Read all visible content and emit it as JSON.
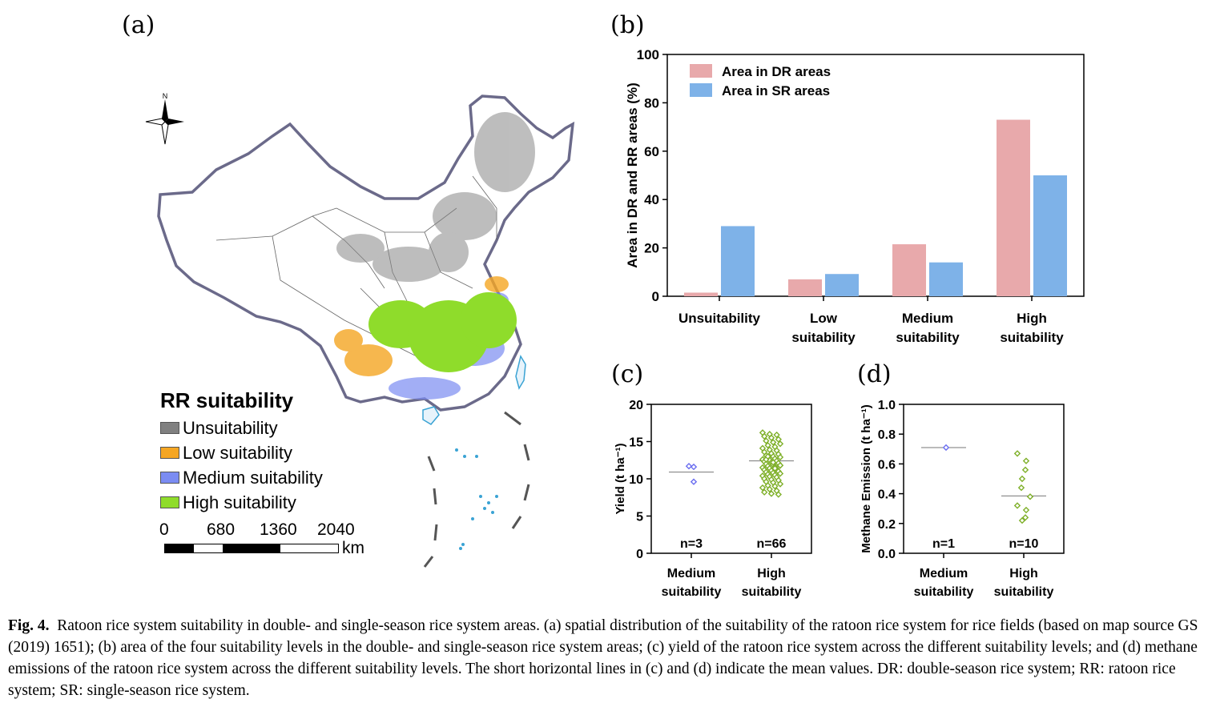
{
  "panel_a": {
    "label": "(a)",
    "north_label": "N",
    "legend": {
      "title": "RR suitability",
      "items": [
        {
          "label": "Unsuitability",
          "color": "#808080"
        },
        {
          "label": "Low suitability",
          "color": "#f5a623"
        },
        {
          "label": "Medium suitability",
          "color": "#7b8cf2"
        },
        {
          "label": "High suitability",
          "color": "#8fdc2b"
        }
      ]
    },
    "scale_bar": {
      "ticks": [
        "0",
        "680",
        "1360",
        "2040"
      ],
      "unit": "km"
    }
  },
  "chart_data": [
    {
      "id": "b",
      "panel_label": "(b)",
      "type": "bar",
      "categories": [
        "Unsuitability",
        "Low suitability",
        "Medium suitability",
        "High suitability"
      ],
      "category_lines": [
        [
          "Unsuitability"
        ],
        [
          "Low",
          "suitability"
        ],
        [
          "Medium",
          "suitability"
        ],
        [
          "High",
          "suitability"
        ]
      ],
      "series": [
        {
          "name": "Area in DR areas",
          "color": "#e8a9ab",
          "values": [
            1.5,
            7,
            21.5,
            73
          ]
        },
        {
          "name": "Area in SR areas",
          "color": "#7eb2e8",
          "values": [
            29,
            9.2,
            14,
            50
          ]
        }
      ],
      "ylabel": "Area in DR and RR areas (%)",
      "xlabel": "",
      "ylim": [
        0,
        100
      ],
      "yticks": [
        "0",
        "20",
        "40",
        "60",
        "80",
        "100"
      ],
      "legend_position": "top-left",
      "grid": false
    },
    {
      "id": "c",
      "panel_label": "(c)",
      "type": "scatter",
      "categories": [
        "Medium suitability",
        "High suitability"
      ],
      "category_lines": [
        [
          "Medium",
          "suitability"
        ],
        [
          "High",
          "suitability"
        ]
      ],
      "ylabel": "Yield (t ha⁻¹)",
      "ylim": [
        0,
        20
      ],
      "yticks": [
        "0",
        "5",
        "10",
        "15",
        "20"
      ],
      "counts": [
        "n=3",
        "n=66"
      ],
      "colors": [
        "#6b6ef0",
        "#7fb02a"
      ],
      "means": [
        10.9,
        12.4
      ],
      "points": [
        [
          11.6,
          11.7,
          9.6
        ],
        [
          16.2,
          16.0,
          15.9,
          15.7,
          15.5,
          15.3,
          15.1,
          14.9,
          14.7,
          14.5,
          14.3,
          14.1,
          13.9,
          13.8,
          13.6,
          13.4,
          13.3,
          13.1,
          13.0,
          12.9,
          12.8,
          12.7,
          12.6,
          12.5,
          12.4,
          12.3,
          12.2,
          12.1,
          12.0,
          11.9,
          11.8,
          11.7,
          11.6,
          11.5,
          11.4,
          11.3,
          11.2,
          11.1,
          11.0,
          10.9,
          10.8,
          10.7,
          10.6,
          10.5,
          10.4,
          10.3,
          10.2,
          10.0,
          9.9,
          9.8,
          9.6,
          9.5,
          9.3,
          9.1,
          9.0,
          8.8,
          8.6,
          8.4,
          8.2,
          8.0,
          7.9,
          12.6,
          12.2,
          11.8,
          13.0,
          11.4
        ]
      ]
    },
    {
      "id": "d",
      "panel_label": "(d)",
      "type": "scatter",
      "categories": [
        "Medium suitability",
        "High suitability"
      ],
      "category_lines": [
        [
          "Medium",
          "suitability"
        ],
        [
          "High",
          "suitability"
        ]
      ],
      "ylabel": "Methane Emission (t ha⁻¹)",
      "ylim": [
        0,
        1.0
      ],
      "yticks": [
        "0.0",
        "0.2",
        "0.4",
        "0.6",
        "0.8",
        "1.0"
      ],
      "counts": [
        "n=1",
        "n=10"
      ],
      "colors": [
        "#6b6ef0",
        "#7fb02a"
      ],
      "means": [
        0.71,
        0.385
      ],
      "points": [
        [
          0.71
        ],
        [
          0.67,
          0.62,
          0.56,
          0.5,
          0.44,
          0.38,
          0.32,
          0.29,
          0.24,
          0.22
        ]
      ]
    }
  ],
  "caption": {
    "bold": "Fig. 4.",
    "text": "Ratoon rice system suitability in double- and single-season rice system areas. (a) spatial distribution of the suitability of the ratoon rice system for rice fields (based on map source GS (2019) 1651); (b) area of the four suitability levels in the double- and single-season rice system areas; (c) yield of the ratoon rice system across the different suitability levels; and (d) methane emissions of the ratoon rice system across the different suitability levels. The short horizontal lines in (c) and (d) indicate the mean values. DR: double-season rice system; RR: ratoon rice system; SR: single-season rice system."
  }
}
